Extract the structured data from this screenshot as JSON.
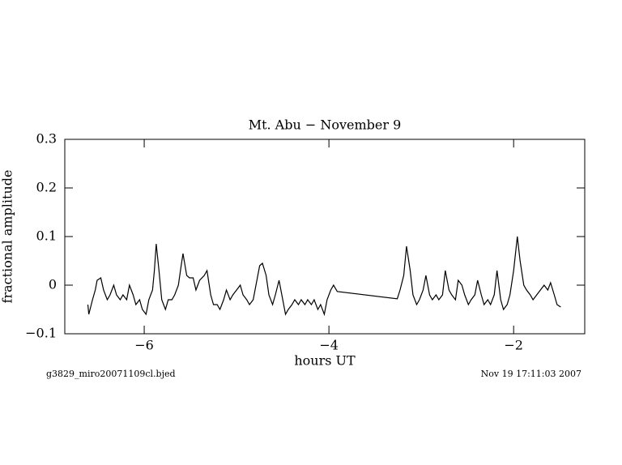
{
  "chart_data": {
    "type": "line",
    "title": "Mt. Abu − November 9",
    "x_label": "hours UT",
    "y_label": "fractional amplitude",
    "footer_left": "g3829_miro20071109cl.bjed",
    "footer_right": "Nov 19 17:11:03 2007",
    "color": "#000000",
    "xlim": [
      -6.86,
      -1.23
    ],
    "ylim": [
      -0.1,
      0.3
    ],
    "xticks": [
      {
        "value": -6,
        "label": "−6"
      },
      {
        "value": -4,
        "label": "−4"
      },
      {
        "value": -2,
        "label": "−2"
      }
    ],
    "yticks": [
      {
        "value": -0.1,
        "label": "−0.1"
      },
      0,
      0.1,
      0.2,
      0.3
    ],
    "x": [
      -6.61,
      -6.6,
      -6.56,
      -6.53,
      -6.51,
      -6.47,
      -6.44,
      -6.4,
      -6.37,
      -6.33,
      -6.3,
      -6.26,
      -6.23,
      -6.19,
      -6.16,
      -6.12,
      -6.09,
      -6.05,
      -6.02,
      -5.98,
      -5.95,
      -5.91,
      -5.89,
      -5.87,
      -5.84,
      -5.81,
      -5.77,
      -5.74,
      -5.7,
      -5.67,
      -5.63,
      -5.6,
      -5.58,
      -5.54,
      -5.51,
      -5.47,
      -5.44,
      -5.4,
      -5.35,
      -5.32,
      -5.28,
      -5.25,
      -5.21,
      -5.18,
      -5.14,
      -5.11,
      -5.07,
      -5.04,
      -5.0,
      -4.96,
      -4.93,
      -4.89,
      -4.86,
      -4.82,
      -4.79,
      -4.75,
      -4.72,
      -4.68,
      -4.65,
      -4.61,
      -4.58,
      -4.54,
      -4.51,
      -4.47,
      -4.44,
      -4.4,
      -4.37,
      -4.33,
      -4.3,
      -4.26,
      -4.23,
      -4.19,
      -4.16,
      -4.12,
      -4.09,
      -4.05,
      -4.02,
      -3.98,
      -3.95,
      -3.91,
      -3.26,
      -3.23,
      -3.19,
      -3.16,
      -3.12,
      -3.09,
      -3.05,
      -3.02,
      -2.98,
      -2.95,
      -2.91,
      -2.88,
      -2.84,
      -2.81,
      -2.77,
      -2.74,
      -2.7,
      -2.67,
      -2.63,
      -2.6,
      -2.56,
      -2.53,
      -2.49,
      -2.46,
      -2.42,
      -2.39,
      -2.35,
      -2.32,
      -2.28,
      -2.25,
      -2.21,
      -2.18,
      -2.14,
      -2.11,
      -2.07,
      -2.04,
      -2.0,
      -1.96,
      -1.93,
      -1.89,
      -1.86,
      -1.82,
      -1.79,
      -1.67,
      -1.63,
      -1.6,
      -1.56,
      -1.53,
      -1.49
    ],
    "values": [
      -0.04,
      -0.06,
      -0.03,
      -0.01,
      0.01,
      0.015,
      -0.01,
      -0.03,
      -0.02,
      0.0,
      -0.02,
      -0.03,
      -0.02,
      -0.03,
      0.0,
      -0.02,
      -0.04,
      -0.03,
      -0.05,
      -0.06,
      -0.03,
      -0.01,
      0.03,
      0.085,
      0.03,
      -0.03,
      -0.05,
      -0.03,
      -0.03,
      -0.02,
      0.0,
      0.04,
      0.065,
      0.02,
      0.015,
      0.015,
      -0.01,
      0.01,
      0.02,
      0.03,
      -0.02,
      -0.04,
      -0.04,
      -0.05,
      -0.03,
      -0.01,
      -0.03,
      -0.02,
      -0.01,
      0.0,
      -0.02,
      -0.03,
      -0.04,
      -0.03,
      0.0,
      0.04,
      0.045,
      0.02,
      -0.02,
      -0.04,
      -0.02,
      0.01,
      -0.02,
      -0.06,
      -0.05,
      -0.04,
      -0.03,
      -0.04,
      -0.03,
      -0.04,
      -0.03,
      -0.04,
      -0.03,
      -0.05,
      -0.04,
      -0.06,
      -0.03,
      -0.01,
      0.0,
      -0.013,
      -0.028,
      -0.01,
      0.02,
      0.08,
      0.03,
      -0.02,
      -0.04,
      -0.03,
      -0.01,
      0.02,
      -0.02,
      -0.03,
      -0.02,
      -0.03,
      -0.02,
      0.03,
      -0.01,
      -0.02,
      -0.03,
      0.01,
      0.0,
      -0.02,
      -0.04,
      -0.03,
      -0.02,
      0.01,
      -0.02,
      -0.04,
      -0.03,
      -0.04,
      -0.02,
      0.03,
      -0.03,
      -0.05,
      -0.04,
      -0.02,
      0.03,
      0.1,
      0.05,
      0.0,
      -0.01,
      -0.02,
      -0.03,
      0.0,
      -0.01,
      0.005,
      -0.02,
      -0.04,
      -0.045
    ]
  }
}
